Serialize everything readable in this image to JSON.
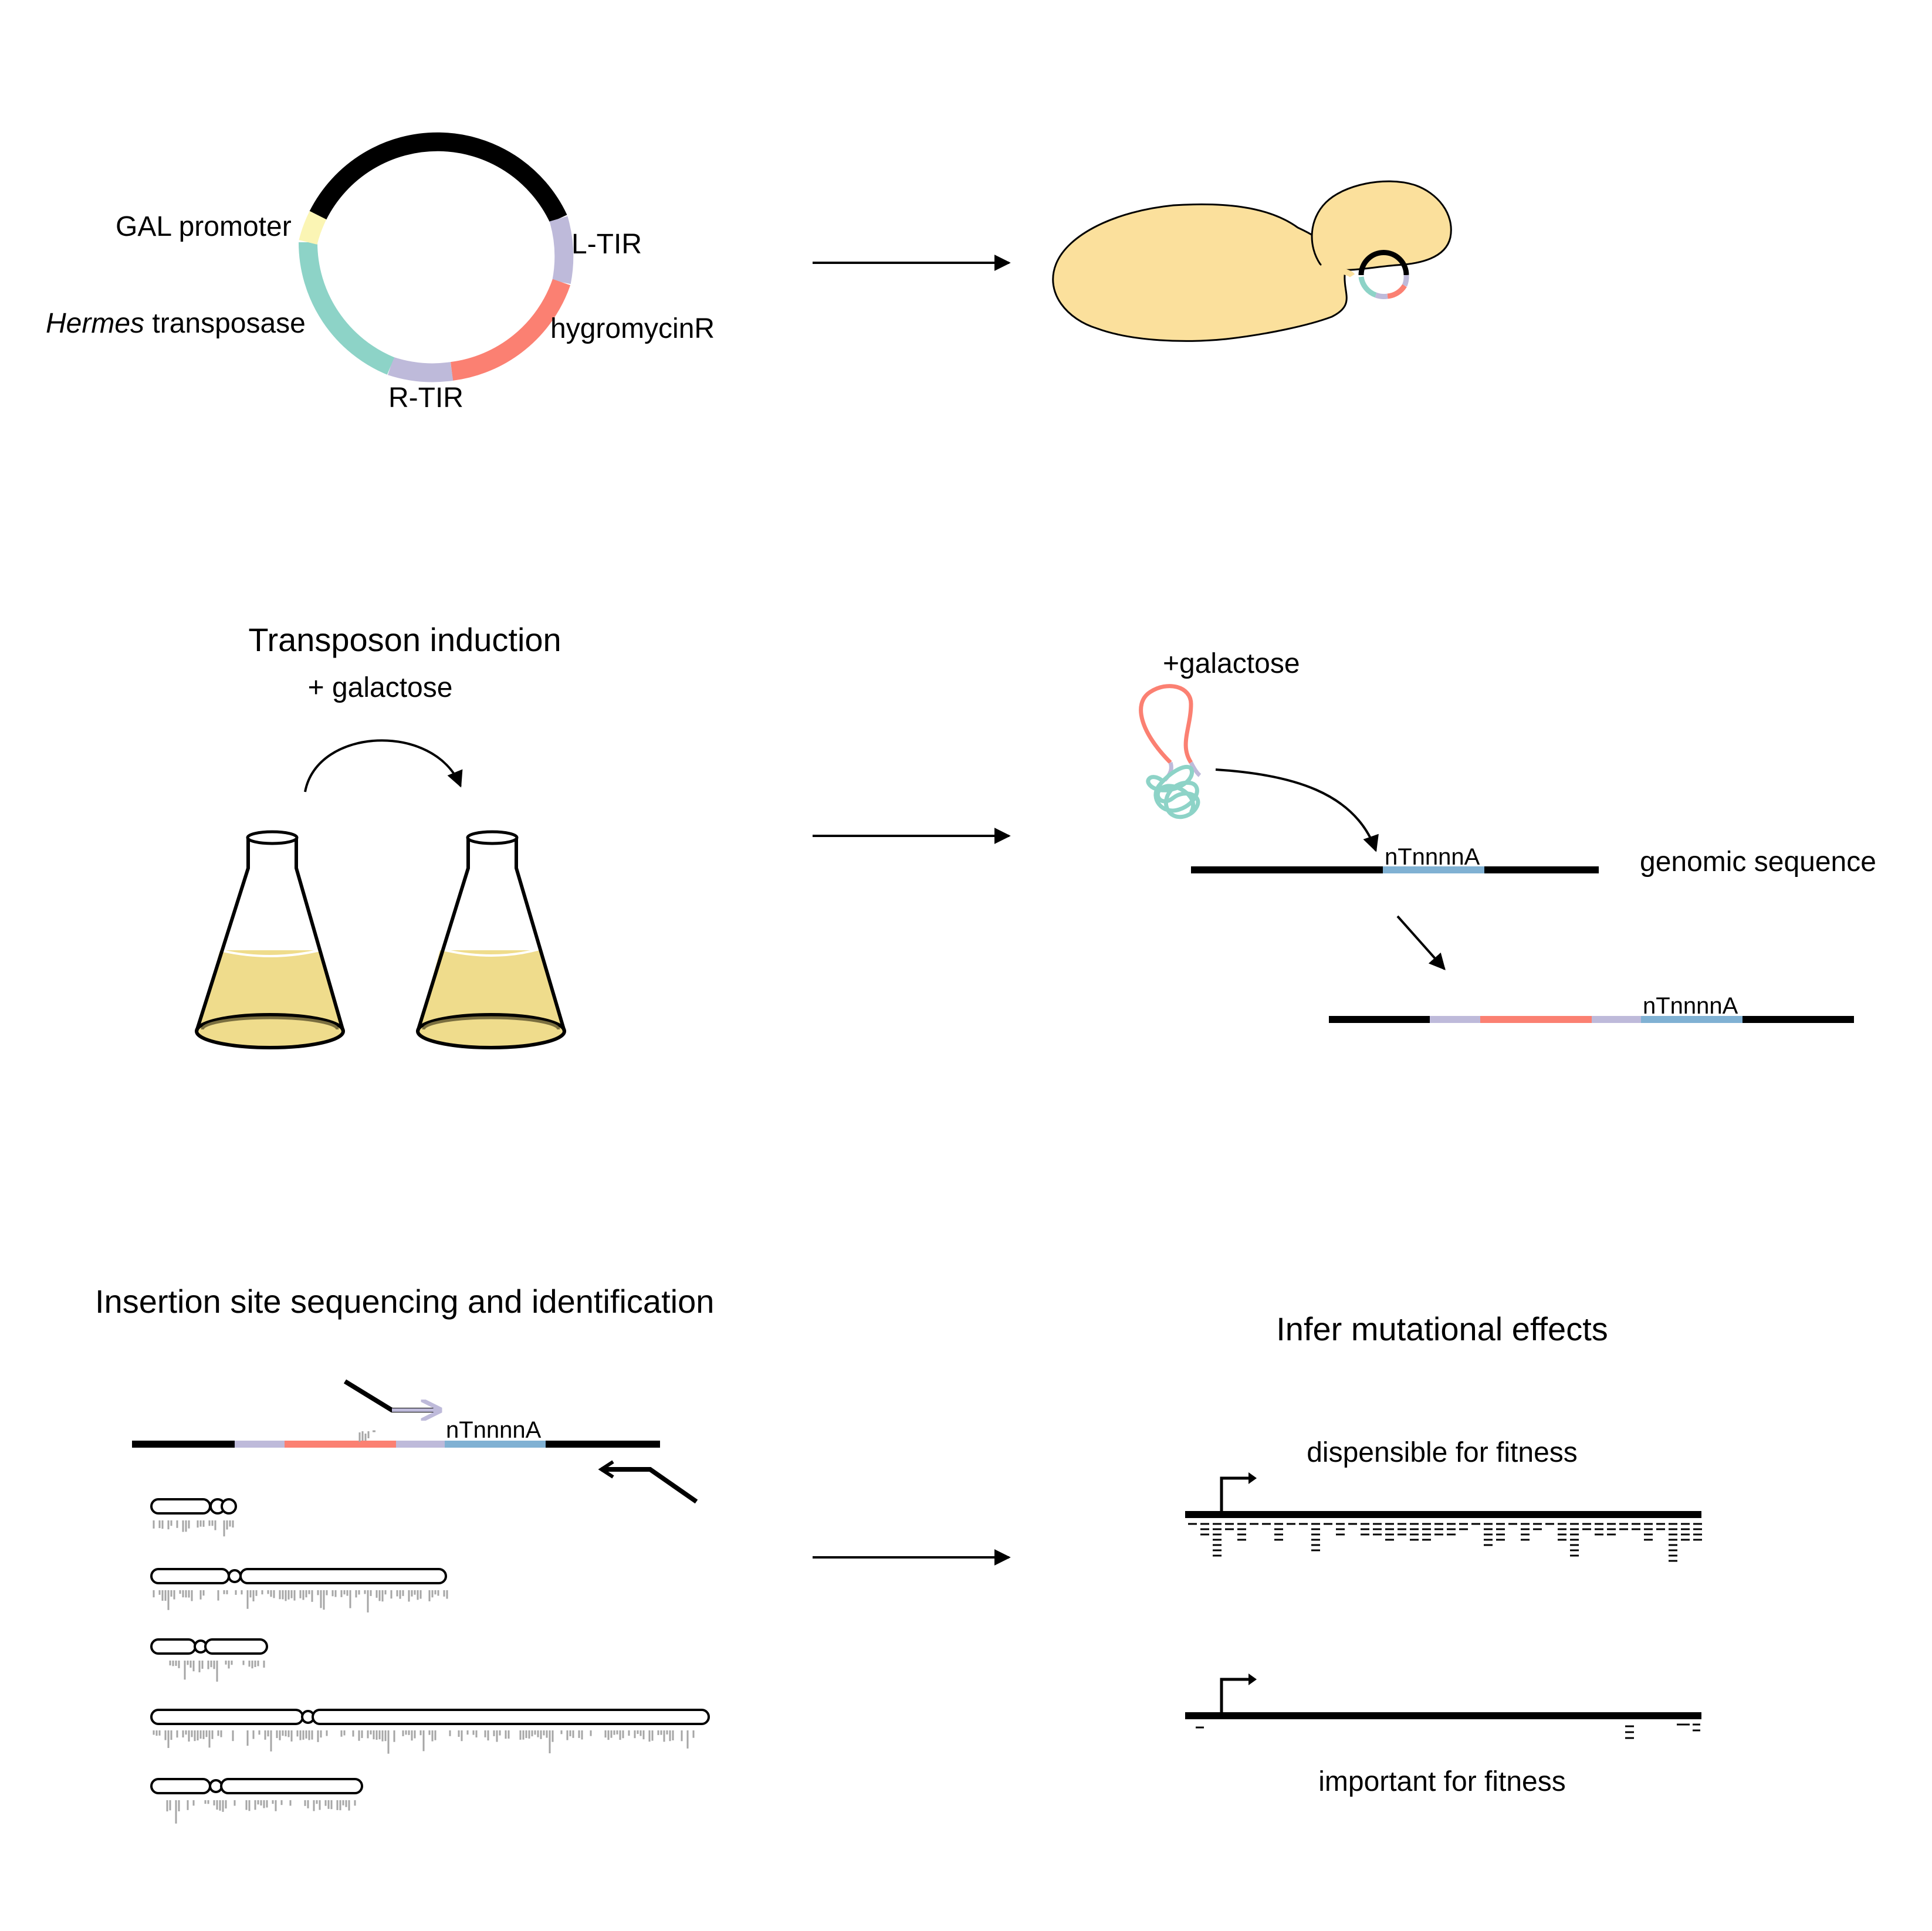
{
  "colors": {
    "black": "#000000",
    "gal_promoter": "#fbf5b4",
    "transposase": "#8dd3c7",
    "tir": "#bebada",
    "hygromycin": "#fb8072",
    "target_site": "#80b1d3",
    "yeast_cell": "#fbe09c",
    "culture": "#efdc8c",
    "reads": "#a6a6a6"
  },
  "icons": [
    "plasmid-icon",
    "yeast-cell-icon",
    "flask-icon",
    "arrow-icon",
    "chromosome-icon",
    "promoter-arrow-icon"
  ],
  "plasmid": {
    "gal_promoter": "GAL promoter",
    "hermes_italic": "Hermes",
    "transposase": " transposase",
    "l_tir": "L-TIR",
    "hygromycin": "hygromycinR",
    "r_tir": "R-TIR"
  },
  "induction": {
    "title": "Transposon induction",
    "subtitle": "+ galactose"
  },
  "mechanism": {
    "galactose": "+galactose",
    "target_site": "nTnnnnA",
    "genomic_sequence": "genomic sequence",
    "inserted_site": "nTnnnnA"
  },
  "sequencing": {
    "title": "Insertion site sequencing and identification",
    "target_site": "nTnnnnA"
  },
  "effects": {
    "title": "Infer mutational effects",
    "dispensable": "dispensible for fitness",
    "important": "important for fitness"
  }
}
